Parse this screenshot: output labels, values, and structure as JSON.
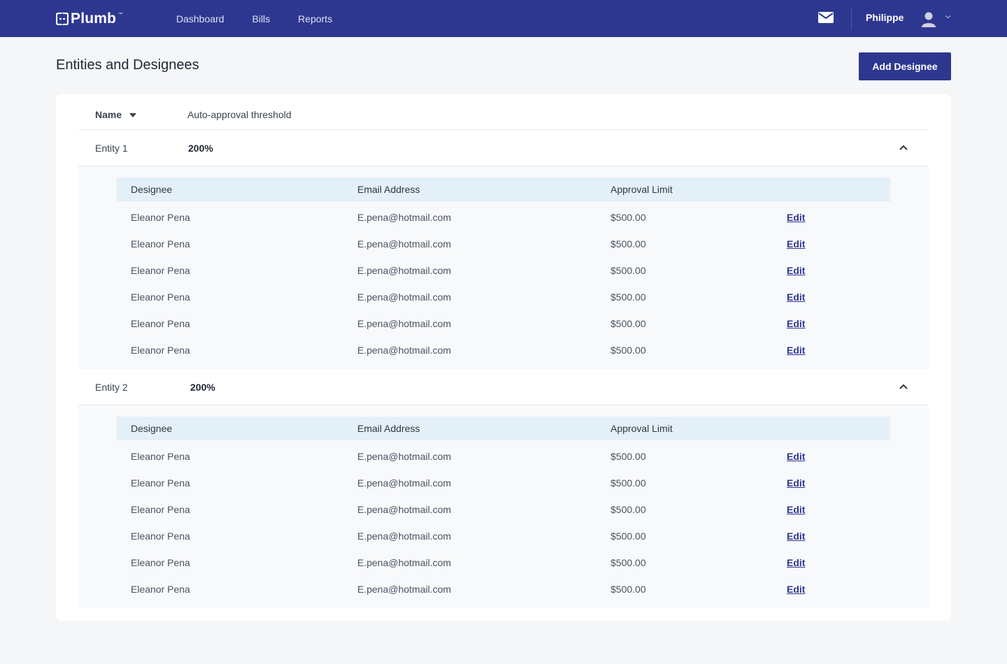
{
  "header": {
    "logo_text": "Plumb",
    "logo_tm": "™",
    "nav": [
      "Dashboard",
      "Bills",
      "Reports"
    ],
    "user_name": "Philippe"
  },
  "page": {
    "title": "Entities and Designees",
    "add_button": "Add Designee"
  },
  "table": {
    "col_name": "Name",
    "col_threshold": "Auto-approval threshold"
  },
  "entities": [
    {
      "name": "Entity 1",
      "threshold": "200%",
      "columns": [
        "Designee",
        "Email Address",
        "Approval Limit"
      ],
      "rows": [
        {
          "designee": "Eleanor Pena",
          "email": "E.pena@hotmail.com",
          "limit": "$500.00",
          "action": "Edit"
        },
        {
          "designee": "Eleanor Pena",
          "email": "E.pena@hotmail.com",
          "limit": "$500.00",
          "action": "Edit"
        },
        {
          "designee": "Eleanor Pena",
          "email": "E.pena@hotmail.com",
          "limit": "$500.00",
          "action": "Edit"
        },
        {
          "designee": "Eleanor Pena",
          "email": "E.pena@hotmail.com",
          "limit": "$500.00",
          "action": "Edit"
        },
        {
          "designee": "Eleanor Pena",
          "email": "E.pena@hotmail.com",
          "limit": "$500.00",
          "action": "Edit"
        },
        {
          "designee": "Eleanor Pena",
          "email": "E.pena@hotmail.com",
          "limit": "$500.00",
          "action": "Edit"
        }
      ]
    },
    {
      "name": "Entity 2",
      "threshold": "200%",
      "columns": [
        "Designee",
        "Email Address",
        "Approval Limit"
      ],
      "rows": [
        {
          "designee": "Eleanor Pena",
          "email": "E.pena@hotmail.com",
          "limit": "$500.00",
          "action": "Edit"
        },
        {
          "designee": "Eleanor Pena",
          "email": "E.pena@hotmail.com",
          "limit": "$500.00",
          "action": "Edit"
        },
        {
          "designee": "Eleanor Pena",
          "email": "E.pena@hotmail.com",
          "limit": "$500.00",
          "action": "Edit"
        },
        {
          "designee": "Eleanor Pena",
          "email": "E.pena@hotmail.com",
          "limit": "$500.00",
          "action": "Edit"
        },
        {
          "designee": "Eleanor Pena",
          "email": "E.pena@hotmail.com",
          "limit": "$500.00",
          "action": "Edit"
        },
        {
          "designee": "Eleanor Pena",
          "email": "E.pena@hotmail.com",
          "limit": "$500.00",
          "action": "Edit"
        }
      ]
    }
  ],
  "icons": {
    "logo": "plumb-logo-icon",
    "mail": "mail-icon",
    "avatar": "user-avatar-icon",
    "user_menu": "caret-down-icon",
    "sort": "sort-desc-icon",
    "collapse": "chevron-up-icon"
  },
  "colors": {
    "brand": "#2e3790",
    "table_header_bg": "#e4f0f8",
    "page_bg": "#f5f6f8"
  }
}
